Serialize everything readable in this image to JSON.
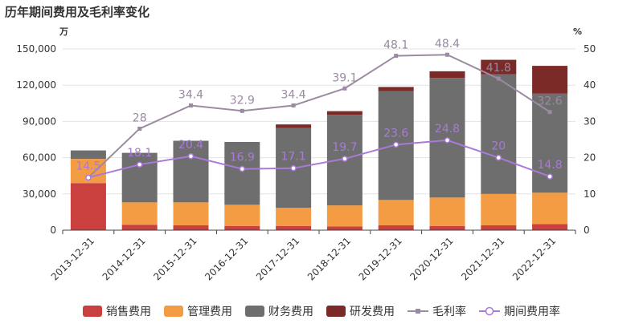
{
  "chart_data": {
    "type": "bar",
    "title": "历年期间费用及毛利率变化",
    "left_unit": "万",
    "right_unit": "%",
    "categories": [
      "2013-12-31",
      "2014-12-31",
      "2015-12-31",
      "2016-12-31",
      "2017-12-31",
      "2018-12-31",
      "2019-12-31",
      "2020-12-31",
      "2021-12-31",
      "2022-12-31"
    ],
    "left_axis": {
      "min": 0,
      "max": 150000,
      "ticks": [
        "0",
        "30,000",
        "60,000",
        "90,000",
        "120,000",
        "150,000"
      ]
    },
    "right_axis": {
      "min": 0,
      "max": 50,
      "ticks": [
        "0",
        "10",
        "20",
        "30",
        "40",
        "50"
      ]
    },
    "stacked_series": [
      {
        "name": "销售费用",
        "color": "#c9403f",
        "values": [
          39000,
          4500,
          4000,
          3500,
          3500,
          3000,
          4000,
          3500,
          4000,
          5000
        ]
      },
      {
        "name": "管理费用",
        "color": "#f39c44",
        "values": [
          20000,
          18500,
          19000,
          17500,
          15000,
          17500,
          21000,
          23500,
          26000,
          26000
        ]
      },
      {
        "name": "财务费用",
        "color": "#6e6e6e",
        "values": [
          7000,
          41000,
          51000,
          52000,
          66000,
          75000,
          90000,
          99000,
          99000,
          82000
        ]
      },
      {
        "name": "研发费用",
        "color": "#7b2a28",
        "values": [
          0,
          0,
          0,
          0,
          3000,
          3000,
          3500,
          5500,
          12000,
          23000
        ]
      }
    ],
    "line_series": [
      {
        "name": "毛利率",
        "color": "#9b8aa1",
        "values": [
          14.5,
          28,
          34.4,
          32.9,
          34.4,
          39.1,
          48.1,
          48.4,
          41.8,
          32.6
        ],
        "labels": [
          "",
          "28",
          "34.4",
          "32.9",
          "34.4",
          "39.1",
          "48.1",
          "48.4",
          "41.8",
          "32.6"
        ]
      },
      {
        "name": "期间费用率",
        "color": "#a97ad9",
        "values": [
          14.5,
          18.1,
          20.4,
          16.9,
          17.1,
          19.7,
          23.6,
          24.8,
          20,
          14.8
        ],
        "labels": [
          "14.5",
          "18.1",
          "20.4",
          "16.9",
          "17.1",
          "19.7",
          "23.6",
          "24.8",
          "20",
          "14.8"
        ]
      }
    ]
  }
}
